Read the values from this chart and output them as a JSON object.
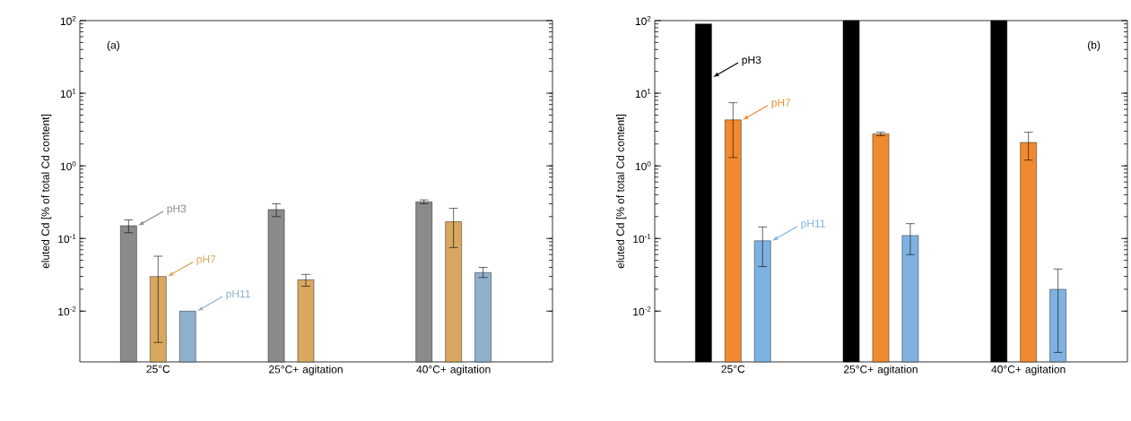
{
  "chart_data": [
    {
      "type": "bar",
      "ylabel": "eluted Cd [% of total Cd content]",
      "categories": [
        "25°C",
        "25°C+ agitation",
        "40°C+ agitation"
      ],
      "log": true,
      "ylim": [
        0.002,
        100
      ],
      "yticks": [
        {
          "value": 0.01,
          "label": "10$^{-2}$"
        },
        {
          "value": 0.1,
          "label": "10$^{-1}$"
        },
        {
          "value": 1,
          "label": "10$^{0}$"
        },
        {
          "value": 10,
          "label": "10$^{1}$"
        },
        {
          "value": 100,
          "label": "10$^{2}$"
        }
      ],
      "series": [
        {
          "name": "pH3",
          "color": "#8a8a8a",
          "values": [
            0.15,
            0.25,
            0.32
          ],
          "errors": [
            [
              0.12,
              0.18
            ],
            [
              0.2,
              0.3
            ],
            [
              0.3,
              0.34
            ]
          ]
        },
        {
          "name": "pH7",
          "color": "#d8a860",
          "values": [
            0.03,
            0.027,
            0.17
          ],
          "errors": [
            [
              0.0037,
              0.057
            ],
            [
              0.022,
              0.032
            ],
            [
              0.075,
              0.26
            ]
          ]
        },
        {
          "name": "pH11",
          "color": "#8fb0cc",
          "values": [
            0.01,
            null,
            0.034
          ],
          "errors": [
            null,
            null,
            [
              0.029,
              0.04
            ]
          ]
        }
      ],
      "annotations": [
        "(a)"
      ]
    },
    {
      "type": "bar",
      "ylabel": "eluted Cd [% of total Cd content]",
      "categories": [
        "25°C",
        "25°C+ agitation",
        "40°C+ agitation"
      ],
      "log": true,
      "ylim": [
        0.002,
        100
      ],
      "yticks": [
        {
          "value": 0.01,
          "label": "10$^{-2}$"
        },
        {
          "value": 0.1,
          "label": "10$^{-1}$"
        },
        {
          "value": 1,
          "label": "10$^{0}$"
        },
        {
          "value": 10,
          "label": "10$^{1}$"
        },
        {
          "value": 100,
          "label": "10$^{2}$"
        }
      ],
      "series": [
        {
          "name": "pH3",
          "color": "#000000",
          "values": [
            90,
            100,
            100
          ]
        },
        {
          "name": "pH7",
          "color": "#f08a30",
          "values": [
            4.3,
            2.75,
            2.1
          ],
          "errors": [
            [
              1.3,
              7.4
            ],
            [
              2.6,
              2.9
            ],
            [
              1.2,
              2.9
            ]
          ]
        },
        {
          "name": "pH11",
          "color": "#7fb2e0",
          "values": [
            0.093,
            0.11,
            0.02
          ],
          "errors": [
            [
              0.041,
              0.144
            ],
            [
              0.06,
              0.16
            ],
            [
              0.0027,
              0.038
            ]
          ]
        }
      ],
      "annotations": [
        "(b)"
      ]
    }
  ]
}
